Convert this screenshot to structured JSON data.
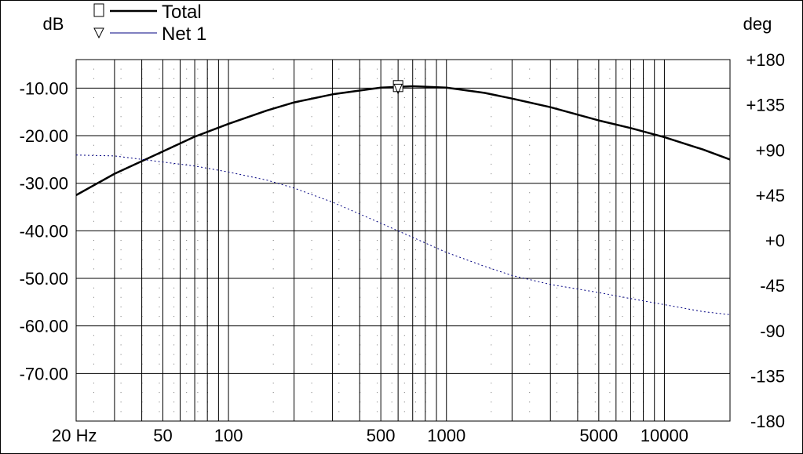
{
  "chart_data": {
    "type": "line",
    "x_scale": "log",
    "xlim": [
      20,
      20000
    ],
    "ylim_left": [
      -80,
      -4
    ],
    "ylim_right": [
      -180,
      180
    ],
    "y_left_unit": "dB",
    "y_right_unit": "deg",
    "x_tick_labels": [
      {
        "value": 20,
        "label": "20 Hz"
      },
      {
        "value": 50,
        "label": "50"
      },
      {
        "value": 100,
        "label": "100"
      },
      {
        "value": 500,
        "label": "500"
      },
      {
        "value": 1000,
        "label": "1000"
      },
      {
        "value": 5000,
        "label": "5000"
      },
      {
        "value": 10000,
        "label": "10000"
      }
    ],
    "y_left_ticks": [
      {
        "value": -10,
        "label": "-10.00"
      },
      {
        "value": -20,
        "label": "-20.00"
      },
      {
        "value": -30,
        "label": "-30.00"
      },
      {
        "value": -40,
        "label": "-40.00"
      },
      {
        "value": -50,
        "label": "-50.00"
      },
      {
        "value": -60,
        "label": "-60.00"
      },
      {
        "value": -70,
        "label": "-70.00"
      }
    ],
    "y_right_ticks": [
      {
        "value": 180,
        "label": "+180"
      },
      {
        "value": 135,
        "label": "+135"
      },
      {
        "value": 90,
        "label": "+90"
      },
      {
        "value": 45,
        "label": "+45"
      },
      {
        "value": 0,
        "label": "+0"
      },
      {
        "value": -45,
        "label": "-45"
      },
      {
        "value": -90,
        "label": "-90"
      },
      {
        "value": -135,
        "label": "-135"
      },
      {
        "value": -180,
        "label": "-180"
      }
    ],
    "grid": true,
    "legend_position": "top-left",
    "series": [
      {
        "name": "Total",
        "axis": "left",
        "color": "#000000",
        "style": "solid",
        "marker": "square",
        "marker_x": 600,
        "x": [
          20,
          30,
          50,
          70,
          100,
          150,
          200,
          300,
          500,
          700,
          1000,
          1500,
          2000,
          3000,
          5000,
          7000,
          10000,
          15000,
          20000
        ],
        "y": [
          -32.5,
          -28.0,
          -23.3,
          -20.2,
          -17.5,
          -14.7,
          -13.0,
          -11.3,
          -9.9,
          -9.6,
          -9.9,
          -11.0,
          -12.2,
          -14.0,
          -16.8,
          -18.4,
          -20.3,
          -22.9,
          -25.0
        ]
      },
      {
        "name": "Net 1",
        "axis": "right",
        "color": "#000080",
        "style": "dotted",
        "marker": "triangle",
        "marker_x": 600,
        "x": [
          20,
          30,
          50,
          70,
          100,
          150,
          200,
          300,
          500,
          700,
          1000,
          1500,
          2000,
          3000,
          5000,
          7000,
          10000,
          15000,
          20000
        ],
        "y": [
          85,
          84,
          78,
          74,
          68,
          60,
          52,
          38,
          17,
          3,
          -12,
          -26,
          -35,
          -44,
          -52,
          -58,
          -64,
          -71,
          -74
        ]
      }
    ]
  }
}
